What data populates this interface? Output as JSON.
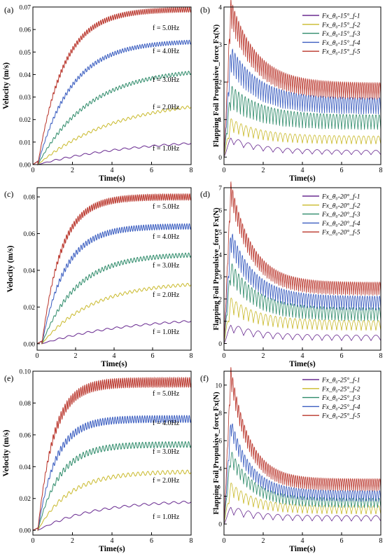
{
  "figure": {
    "panels": [
      {
        "panel_label": "(a)"
      },
      {
        "panel_label": "(b)"
      },
      {
        "panel_label": "(c)"
      },
      {
        "panel_label": "(d)"
      },
      {
        "panel_label": "(e)"
      },
      {
        "panel_label": "(f)"
      }
    ]
  },
  "chart_data": [
    {
      "id": "a",
      "type": "line",
      "panel_label": "(a)",
      "xlabel": "Time(s)",
      "ylabel": "Velocity (m/s)",
      "xlim": [
        0,
        8
      ],
      "ylim": [
        0,
        0.07
      ],
      "xticks": [
        0,
        2,
        4,
        6,
        8
      ],
      "yticks": [
        0.0,
        0.01,
        0.02,
        0.03,
        0.04,
        0.05,
        0.06,
        0.07
      ],
      "ytick_labels": [
        "0.00",
        "0.01",
        "0.02",
        "0.03",
        "0.04",
        "0.05",
        "0.06",
        "0.07"
      ],
      "colors": [
        "#6a2c91",
        "#c9b92a",
        "#2e8b6a",
        "#3a5dc0",
        "#b9342a"
      ],
      "annotations": [
        "f = 1.0Hz",
        "f = 2.0Hz",
        "f = 3.0Hz",
        "f = 4.0Hz",
        "f = 5.0Hz"
      ],
      "series": [
        {
          "frequency_hz": 1.0,
          "t_start": 0.25,
          "steady": 0.012,
          "tau": 5.0,
          "osc": 0.0004,
          "x": [
            0.25,
            2,
            4,
            6,
            8
          ],
          "values": [
            0.001,
            0.004,
            0.007,
            0.009,
            0.01
          ]
        },
        {
          "frequency_hz": 2.0,
          "t_start": 0.25,
          "steady": 0.03,
          "tau": 4.0,
          "osc": 0.0006,
          "x": [
            0.25,
            2,
            4,
            6,
            8
          ],
          "values": [
            0.002,
            0.011,
            0.019,
            0.023,
            0.025
          ]
        },
        {
          "frequency_hz": 3.0,
          "t_start": 0.25,
          "steady": 0.043,
          "tau": 2.6,
          "osc": 0.0008,
          "x": [
            0.25,
            2,
            4,
            6,
            8
          ],
          "values": [
            0.002,
            0.02,
            0.032,
            0.038,
            0.041
          ]
        },
        {
          "frequency_hz": 4.0,
          "t_start": 0.25,
          "steady": 0.055,
          "tau": 1.7,
          "osc": 0.0009,
          "x": [
            0.25,
            2,
            4,
            6,
            8
          ],
          "values": [
            0.002,
            0.035,
            0.049,
            0.053,
            0.054
          ]
        },
        {
          "frequency_hz": 5.0,
          "t_start": 0.25,
          "steady": 0.069,
          "tau": 1.3,
          "osc": 0.0011,
          "x": [
            0.25,
            2,
            4,
            6,
            8
          ],
          "values": [
            0.002,
            0.051,
            0.065,
            0.068,
            0.069
          ]
        }
      ]
    },
    {
      "id": "b",
      "type": "line",
      "panel_label": "(b)",
      "xlabel": "Time(s)",
      "ylabel": "Flapping Foil Propulsive_force Fx(N)",
      "xlim": [
        0,
        8
      ],
      "ylim": [
        -0.2,
        4
      ],
      "xticks": [
        0,
        2,
        4,
        6,
        8
      ],
      "yticks": [
        0,
        1,
        2,
        3,
        4
      ],
      "ytick_labels": [
        "0",
        "1",
        "2",
        "3",
        "4"
      ],
      "colors": [
        "#6a2c91",
        "#c9b92a",
        "#2e8b6a",
        "#3a5dc0",
        "#b9342a"
      ],
      "legend": [
        "Fx_θ₀-15°_f-1",
        "Fx_θ₀-15°_f-2",
        "Fx_θ₀-15°_f-3",
        "Fx_θ₀-15°_f-4",
        "Fx_θ₀-15°_f-5"
      ],
      "legend_position": "top-right",
      "series": [
        {
          "frequency_hz": 1.0,
          "peak": 0.45,
          "steady_mean": 0.12,
          "amplitude": 0.12,
          "tau": 1.5
        },
        {
          "frequency_hz": 2.0,
          "peak": 0.85,
          "steady_mean": 0.45,
          "amplitude": 0.22,
          "tau": 1.5
        },
        {
          "frequency_hz": 3.0,
          "peak": 1.6,
          "steady_mean": 0.92,
          "amplitude": 0.4,
          "tau": 1.5
        },
        {
          "frequency_hz": 4.0,
          "peak": 2.6,
          "steady_mean": 1.35,
          "amplitude": 0.45,
          "tau": 1.4
        },
        {
          "frequency_hz": 5.0,
          "peak": 3.85,
          "steady_mean": 1.75,
          "amplitude": 0.45,
          "tau": 1.3
        }
      ]
    },
    {
      "id": "c",
      "type": "line",
      "panel_label": "(c)",
      "xlabel": "Time(s)",
      "ylabel": "Velocity (m/s)",
      "xlim": [
        0,
        8
      ],
      "ylim": [
        -0.0035,
        0.085
      ],
      "xticks": [
        0,
        2,
        4,
        6,
        8
      ],
      "yticks": [
        0.0,
        0.02,
        0.04,
        0.06,
        0.08
      ],
      "ytick_labels": [
        "0.00",
        "0.02",
        "0.04",
        "0.06",
        "0.08"
      ],
      "colors": [
        "#6a2c91",
        "#c9b92a",
        "#2e8b6a",
        "#3a5dc0",
        "#b9342a"
      ],
      "annotations": [
        "f = 1.0Hz",
        "f = 2.0Hz",
        "f = 3.0Hz",
        "f = 4.0Hz",
        "f = 5.0Hz"
      ],
      "series": [
        {
          "frequency_hz": 1.0,
          "t_start": 0.25,
          "steady": 0.015,
          "tau": 4.5,
          "osc": 0.0005,
          "x": [
            0.25,
            2,
            4,
            6,
            8
          ],
          "values": [
            0.001,
            0.005,
            0.009,
            0.011,
            0.012
          ]
        },
        {
          "frequency_hz": 2.0,
          "t_start": 0.25,
          "steady": 0.034,
          "tau": 2.6,
          "osc": 0.0008,
          "x": [
            0.25,
            2,
            4,
            6,
            8
          ],
          "values": [
            0.002,
            0.018,
            0.027,
            0.031,
            0.033
          ]
        },
        {
          "frequency_hz": 3.0,
          "t_start": 0.25,
          "steady": 0.049,
          "tau": 1.8,
          "osc": 0.0012,
          "x": [
            0.25,
            2,
            4,
            6,
            8
          ],
          "values": [
            0.002,
            0.033,
            0.045,
            0.048,
            0.049
          ]
        },
        {
          "frequency_hz": 4.0,
          "t_start": 0.25,
          "steady": 0.064,
          "tau": 1.2,
          "osc": 0.0015,
          "x": [
            0.25,
            2,
            4,
            6,
            8
          ],
          "values": [
            0.002,
            0.052,
            0.062,
            0.064,
            0.064
          ]
        },
        {
          "frequency_hz": 5.0,
          "t_start": 0.25,
          "steady": 0.08,
          "tau": 1.0,
          "osc": 0.0017,
          "x": [
            0.25,
            2,
            4,
            6,
            8
          ],
          "values": [
            0.002,
            0.069,
            0.079,
            0.08,
            0.08
          ]
        }
      ]
    },
    {
      "id": "d",
      "type": "line",
      "panel_label": "(d)",
      "xlabel": "Time(s)",
      "ylabel": "Flapping Foil Propulsive_force Fx(N)",
      "xlim": [
        0,
        8
      ],
      "ylim": [
        -0.3,
        7
      ],
      "xticks": [
        0,
        2,
        4,
        6,
        8
      ],
      "yticks": [
        0,
        1,
        2,
        3,
        4,
        5,
        6,
        7
      ],
      "ytick_labels": [
        "0",
        "1",
        "2",
        "3",
        "4",
        "5",
        "6",
        "7"
      ],
      "colors": [
        "#6a2c91",
        "#c9b92a",
        "#2e8b6a",
        "#3a5dc0",
        "#b9342a"
      ],
      "legend": [
        "Fx_θ₀-20°_f-1",
        "Fx_θ₀-20°_f-2",
        "Fx_θ₀-20°_f-3",
        "Fx_θ₀-20°_f-4",
        "Fx_θ₀-20°_f-5"
      ],
      "legend_position": "top-right",
      "series": [
        {
          "frequency_hz": 1.0,
          "peak": 0.7,
          "steady_mean": 0.25,
          "amplitude": 0.25,
          "tau": 1.4
        },
        {
          "frequency_hz": 2.0,
          "peak": 1.7,
          "steady_mean": 0.8,
          "amplitude": 0.45,
          "tau": 1.4
        },
        {
          "frequency_hz": 3.0,
          "peak": 3.2,
          "steady_mean": 1.3,
          "amplitude": 0.6,
          "tau": 1.3
        },
        {
          "frequency_hz": 4.0,
          "peak": 4.6,
          "steady_mean": 1.8,
          "amplitude": 0.65,
          "tau": 1.2
        },
        {
          "frequency_hz": 5.0,
          "peak": 6.8,
          "steady_mean": 2.45,
          "amplitude": 0.6,
          "tau": 1.1
        }
      ]
    },
    {
      "id": "e",
      "type": "line",
      "panel_label": "(e)",
      "xlabel": "Time(s)",
      "ylabel": "Velocity (m/s)",
      "xlim": [
        0,
        8
      ],
      "ylim": [
        -0.003,
        0.1
      ],
      "xticks": [
        0,
        2,
        4,
        6,
        8
      ],
      "yticks": [
        0.0,
        0.02,
        0.04,
        0.06,
        0.08,
        0.1
      ],
      "ytick_labels": [
        "0.00",
        "0.02",
        "0.04",
        "0.06",
        "0.08",
        "0.10"
      ],
      "colors": [
        "#6a2c91",
        "#c9b92a",
        "#2e8b6a",
        "#3a5dc0",
        "#b9342a"
      ],
      "annotations": [
        "f = 1.0Hz",
        "f = 2.0Hz",
        "f = 3.0Hz",
        "f = 4.0Hz",
        "f = 5.0Hz"
      ],
      "series": [
        {
          "frequency_hz": 1.0,
          "t_start": 0.25,
          "steady": 0.019,
          "tau": 2.8,
          "osc": 0.0007,
          "x": [
            0.25,
            2,
            4,
            6,
            8
          ],
          "values": [
            0.001,
            0.01,
            0.016,
            0.018,
            0.019
          ]
        },
        {
          "frequency_hz": 2.0,
          "t_start": 0.25,
          "steady": 0.037,
          "tau": 1.6,
          "osc": 0.0012,
          "x": [
            0.25,
            2,
            4,
            6,
            8
          ],
          "values": [
            0.002,
            0.027,
            0.035,
            0.037,
            0.037
          ]
        },
        {
          "frequency_hz": 3.0,
          "t_start": 0.25,
          "steady": 0.054,
          "tau": 1.1,
          "osc": 0.0018,
          "x": [
            0.25,
            2,
            4,
            6,
            8
          ],
          "values": [
            0.002,
            0.046,
            0.053,
            0.054,
            0.054
          ]
        },
        {
          "frequency_hz": 4.0,
          "t_start": 0.25,
          "steady": 0.07,
          "tau": 0.9,
          "osc": 0.0022,
          "x": [
            0.25,
            2,
            4,
            6,
            8
          ],
          "values": [
            0.002,
            0.064,
            0.07,
            0.07,
            0.07
          ]
        },
        {
          "frequency_hz": 5.0,
          "t_start": 0.25,
          "steady": 0.093,
          "tau": 0.8,
          "osc": 0.003,
          "x": [
            0.25,
            2,
            4,
            6,
            8
          ],
          "values": [
            0.002,
            0.087,
            0.093,
            0.093,
            0.093
          ]
        }
      ]
    },
    {
      "id": "f",
      "type": "line",
      "panel_label": "(f)",
      "xlabel": "Time(s)",
      "ylabel": "Flapping Foil Propulsive_force Fx(N)",
      "xlim": [
        0,
        8
      ],
      "ylim": [
        -0.8,
        11
      ],
      "xticks": [
        0,
        2,
        4,
        6,
        8
      ],
      "yticks": [
        0,
        2,
        4,
        6,
        8,
        10
      ],
      "ytick_labels": [
        "0",
        "2",
        "4",
        "6",
        "8",
        "10"
      ],
      "colors": [
        "#6a2c91",
        "#c9b92a",
        "#2e8b6a",
        "#3a5dc0",
        "#b9342a"
      ],
      "legend": [
        "Fx_θ₀-25°_f-1",
        "Fx_θ₀-25°_f-2",
        "Fx_θ₀-25°_f-3",
        "Fx_θ₀-25°_f-4",
        "Fx_θ₀-25°_f-5"
      ],
      "legend_position": "top-right",
      "series": [
        {
          "frequency_hz": 1.0,
          "peak": 1.0,
          "steady_mean": 0.4,
          "amplitude": 0.4,
          "tau": 1.2
        },
        {
          "frequency_hz": 2.0,
          "peak": 2.5,
          "steady_mean": 1.0,
          "amplitude": 0.6,
          "tau": 1.2
        },
        {
          "frequency_hz": 3.0,
          "peak": 4.8,
          "steady_mean": 1.5,
          "amplitude": 0.7,
          "tau": 1.1
        },
        {
          "frequency_hz": 4.0,
          "peak": 7.0,
          "steady_mean": 2.0,
          "amplitude": 0.8,
          "tau": 1.0
        },
        {
          "frequency_hz": 5.0,
          "peak": 10.6,
          "steady_mean": 2.8,
          "amplitude": 0.9,
          "tau": 0.95
        }
      ]
    }
  ]
}
